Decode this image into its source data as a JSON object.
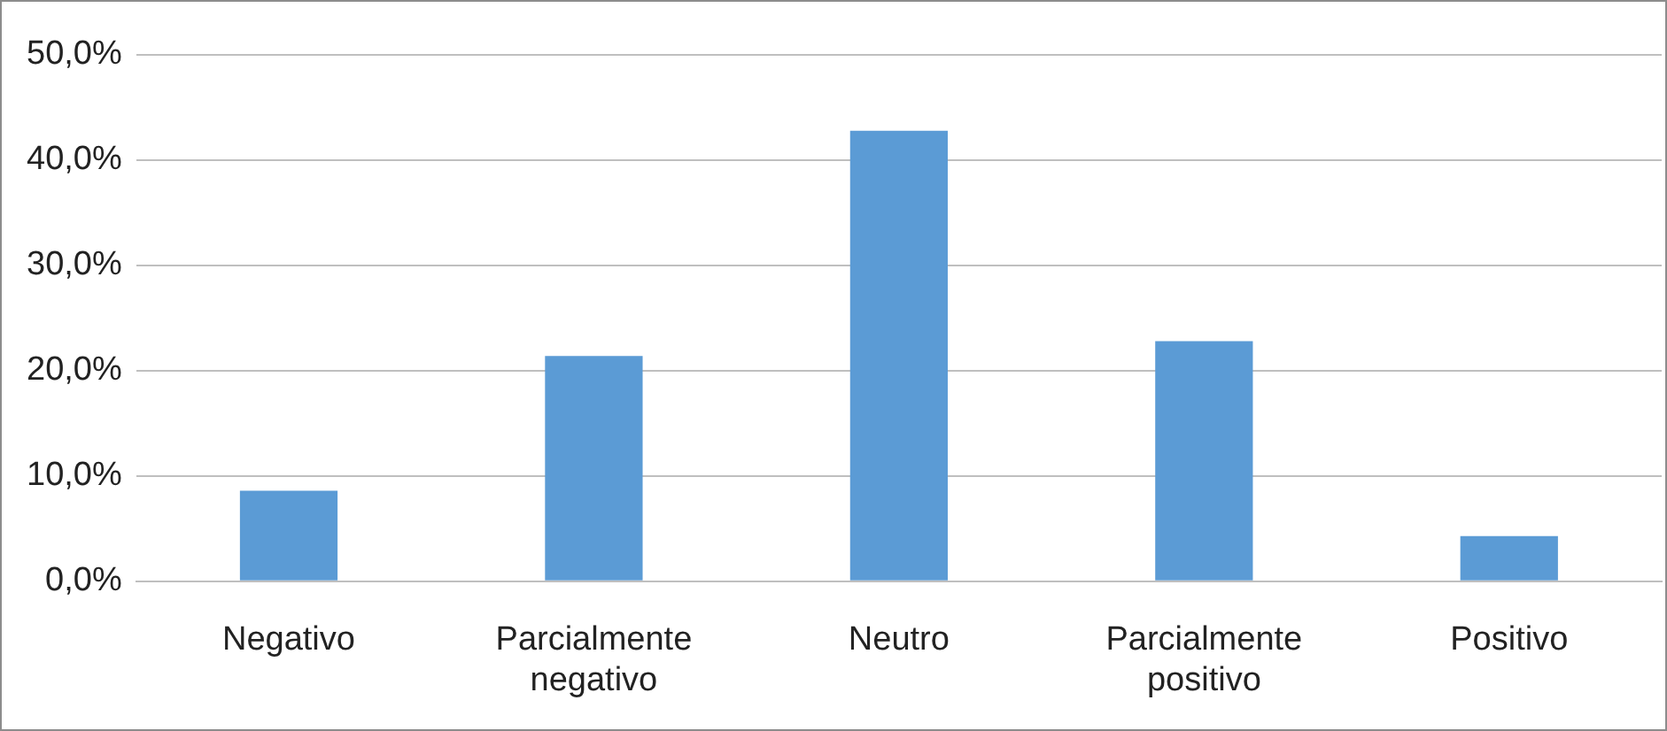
{
  "chart_data": {
    "type": "bar",
    "categories": [
      "Negativo",
      "Parcialmente negativo",
      "Neutro",
      "Parcialmente positivo",
      "Positivo"
    ],
    "values": [
      8.6,
      21.4,
      42.8,
      22.8,
      4.3
    ],
    "color": "#5b9bd5",
    "ylim": [
      0,
      50
    ],
    "yticks": [
      {
        "value": 0,
        "label": "0,0%"
      },
      {
        "value": 10,
        "label": "10,0%"
      },
      {
        "value": 20,
        "label": "20,0%"
      },
      {
        "value": 30,
        "label": "30,0%"
      },
      {
        "value": 40,
        "label": "40,0%"
      },
      {
        "value": 50,
        "label": "50,0%"
      }
    ],
    "grid": "y",
    "legend": false
  }
}
